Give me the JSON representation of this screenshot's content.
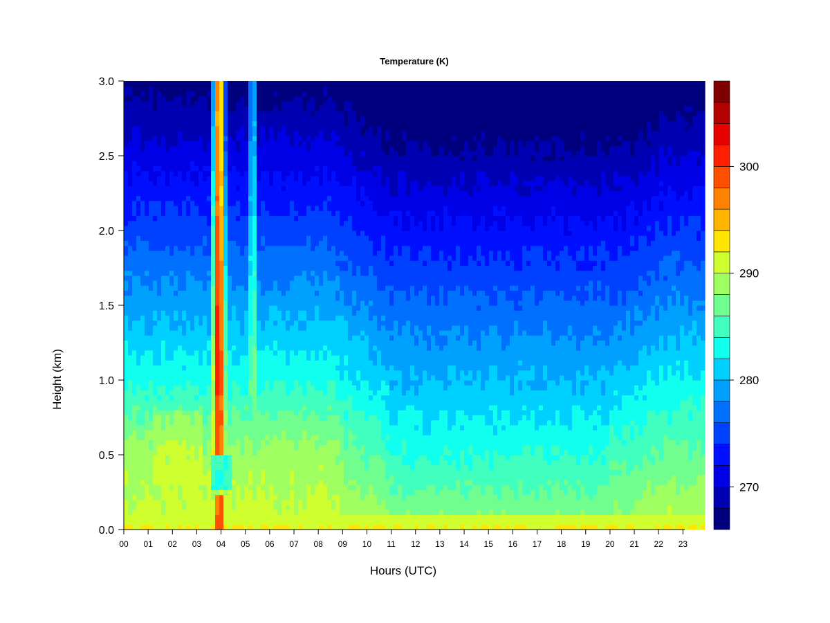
{
  "chart_data": {
    "type": "heatmap",
    "title": "Temperature (K)",
    "xlabel": "Hours (UTC)",
    "ylabel": "Height (km)",
    "xlim": [
      0,
      23.9
    ],
    "ylim": [
      0,
      3
    ],
    "x_tick_values": [
      0,
      1,
      2,
      3,
      4,
      5,
      6,
      7,
      8,
      9,
      10,
      11,
      12,
      13,
      14,
      15,
      16,
      17,
      18,
      19,
      20,
      21,
      22,
      23
    ],
    "x_ticks": [
      "00",
      "01",
      "02",
      "03",
      "04",
      "05",
      "06",
      "07",
      "08",
      "09",
      "10",
      "11",
      "12",
      "13",
      "14",
      "15",
      "16",
      "17",
      "18",
      "19",
      "20",
      "21",
      "22",
      "23"
    ],
    "y_tick_values": [
      0,
      0.5,
      1,
      1.5,
      2,
      2.5,
      3
    ],
    "y_ticks": [
      "0.0",
      "0.5",
      "1.0",
      "1.5",
      "2.0",
      "2.5",
      "3.0"
    ],
    "colorbar": {
      "levels": [
        266,
        268,
        270,
        272,
        274,
        276,
        278,
        280,
        282,
        284,
        286,
        288,
        290,
        292,
        294,
        296,
        298,
        300,
        302,
        304,
        306,
        308
      ],
      "colors": [
        "#00007f",
        "#0000b3",
        "#0000e6",
        "#0010ff",
        "#0040ff",
        "#0070ff",
        "#00a0ff",
        "#00d0ff",
        "#10ffef",
        "#40ffbf",
        "#70ff8f",
        "#a0ff60",
        "#d0ff30",
        "#ffe600",
        "#ffb400",
        "#ff8200",
        "#ff5000",
        "#ff1e00",
        "#e60000",
        "#b30000",
        "#7f0000"
      ],
      "tick_values": [
        270,
        280,
        290,
        300
      ],
      "tick_labels": [
        "270",
        "280",
        "290",
        "300"
      ]
    },
    "features": [
      {
        "kind": "warm-plume",
        "x_center": 3.9,
        "x_halfwidth": 0.25,
        "z_range": [
          0.5,
          3.0
        ],
        "peak_K": 302
      },
      {
        "kind": "warm-plume",
        "x_center": 5.3,
        "x_halfwidth": 0.12,
        "z_range": [
          0.4,
          3.0
        ],
        "peak_K": 290
      },
      {
        "kind": "surface-warm-layer",
        "z_top": 0.08,
        "value_K": 292
      }
    ]
  }
}
